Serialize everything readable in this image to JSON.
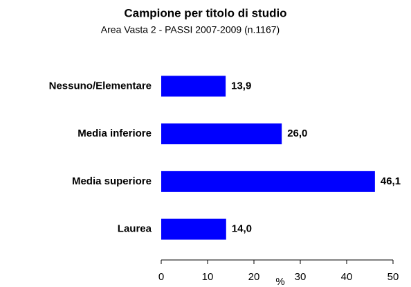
{
  "chart_data": {
    "type": "bar",
    "title": "Campione per titolo di studio",
    "subtitle": "Area Vasta 2  - PASSI 2007-2009   (n.1167)",
    "x_label": "%",
    "categories": [
      "Nessuno/Elementare",
      "Media inferiore",
      "Media superiore",
      "Laurea"
    ],
    "values": [
      13.9,
      26.0,
      46.1,
      14.0
    ],
    "value_labels": [
      "13,9",
      "26,0",
      "46,1",
      "14,0"
    ],
    "color": "#0000ff",
    "xlim": [
      0,
      50
    ],
    "xticks": [
      0,
      10,
      20,
      30,
      40,
      50
    ]
  }
}
